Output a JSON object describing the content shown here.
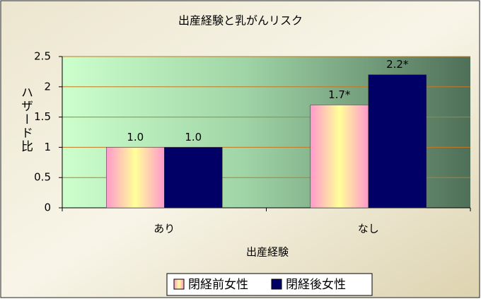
{
  "chart_data": {
    "type": "bar",
    "title": "出産経験と乳がんリスク",
    "x_label": "出産経験",
    "y_label": "ハザード比",
    "categories": [
      "あり",
      "なし"
    ],
    "series": [
      {
        "name": "閉経前女性",
        "color": "#ff99cc",
        "values": [
          1.0,
          1.7
        ],
        "value_labels": [
          "1.0",
          "1.7*"
        ]
      },
      {
        "name": "閉経後女性",
        "color": "#000066",
        "values": [
          1.0,
          2.2
        ],
        "value_labels": [
          "1.0",
          "2.2*"
        ]
      }
    ],
    "ylim": [
      0,
      2.5
    ],
    "yticks": [
      0,
      0.5,
      1,
      1.5,
      2,
      2.5
    ],
    "grid": true,
    "legend": "bottom"
  }
}
